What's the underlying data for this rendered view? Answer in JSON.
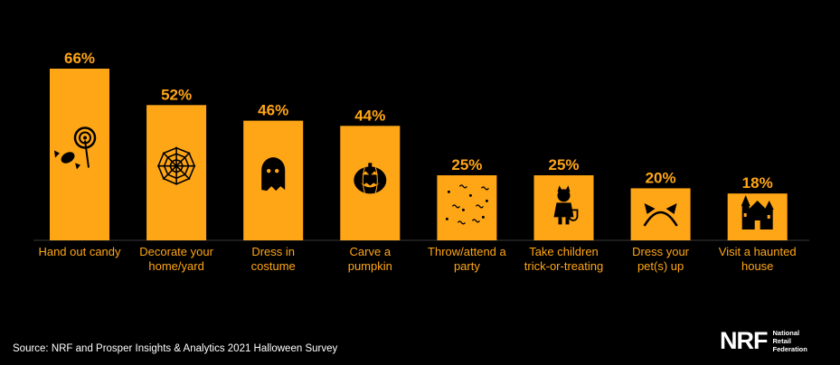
{
  "colors": {
    "background": "#000000",
    "bar": "#ffa616",
    "value_label": "#ffa616",
    "category_label": "#ffa616",
    "icon": "#000000",
    "text": "#ffffff"
  },
  "chart_data": {
    "type": "bar",
    "categories": [
      [
        "Hand out candy"
      ],
      [
        "Decorate your",
        "home/yard"
      ],
      [
        "Dress in",
        "costume"
      ],
      [
        "Carve a",
        "pumpkin"
      ],
      [
        "Throw/attend a",
        "party"
      ],
      [
        "Take children",
        "trick-or-treating"
      ],
      [
        "Dress your",
        "pet(s) up"
      ],
      [
        "Visit a haunted",
        "house"
      ]
    ],
    "values": [
      66,
      52,
      46,
      44,
      25,
      25,
      20,
      18
    ],
    "value_labels": [
      "66%",
      "52%",
      "46%",
      "44%",
      "25%",
      "25%",
      "20%",
      "18%"
    ],
    "icons": [
      "candy-icon",
      "spiderweb-icon",
      "ghost-icon",
      "pumpkin-icon",
      "confetti-icon",
      "child-costume-icon",
      "cat-ears-icon",
      "haunted-house-icon"
    ],
    "ylim": [
      0,
      66
    ],
    "grid": false,
    "legend": "none"
  },
  "footer": {
    "source": "Source: NRF and Prosper Insights & Analytics 2021 Halloween Survey"
  },
  "logo": {
    "mark": "NRF",
    "line1": "National",
    "line2": "Retail",
    "line3": "Federation"
  }
}
